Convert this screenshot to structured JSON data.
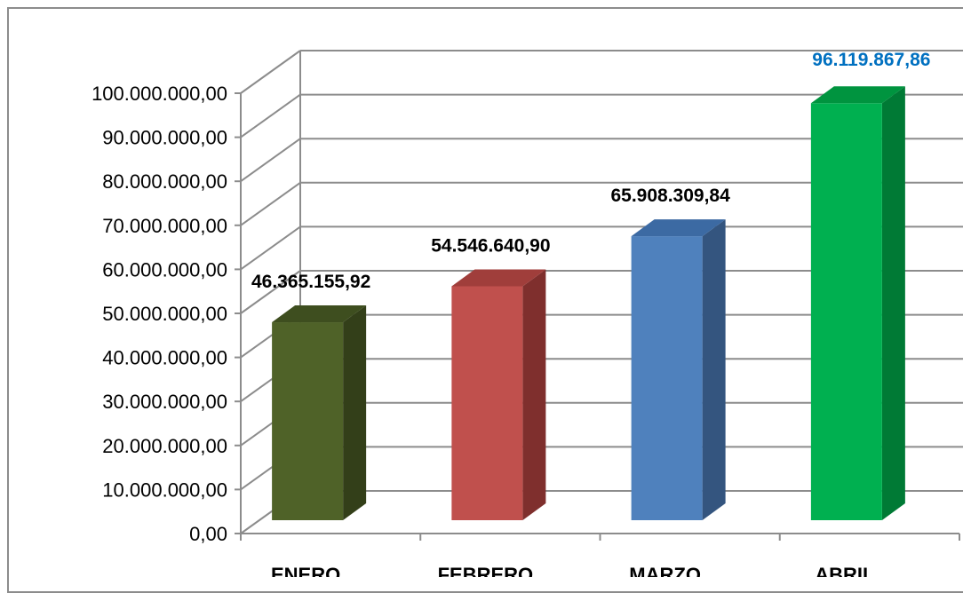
{
  "chart_data": {
    "type": "bar",
    "categories": [
      "ENERO",
      "FEBRERO",
      "MARZO",
      "ABRIL"
    ],
    "values": [
      46365155.92,
      54546640.9,
      65908309.84,
      96119867.86
    ],
    "value_labels": [
      "46.365.155,92",
      "54.546.640,90",
      "65.908.309,84",
      "96.119.867,86"
    ],
    "ylim": [
      0,
      100000000
    ],
    "y_ticks": [
      0,
      10000000,
      20000000,
      30000000,
      40000000,
      50000000,
      60000000,
      70000000,
      80000000,
      90000000,
      100000000
    ],
    "y_tick_labels": [
      "0,00",
      "10.000.000,00",
      "20.000.000,00",
      "30.000.000,00",
      "40.000.000,00",
      "50.000.000,00",
      "60.000.000,00",
      "70.000.000,00",
      "80.000.000,00",
      "90.000.000,00",
      "100.000.000,00"
    ],
    "bar_colors": [
      "#4f6228",
      "#c0504d",
      "#4f81bd",
      "#00b050"
    ],
    "bar_side_colors": [
      "#333f19",
      "#7f2f2d",
      "#34557f",
      "#007a35"
    ],
    "bar_top_colors": [
      "#3e4e1f",
      "#a03e3b",
      "#3c6aa3",
      "#00943f"
    ],
    "label_colors": [
      "#000000",
      "#000000",
      "#000000",
      "#0070c0"
    ],
    "style": "3d-column",
    "grid": true,
    "legend": "none",
    "title": "",
    "xlabel": "",
    "ylabel": ""
  }
}
